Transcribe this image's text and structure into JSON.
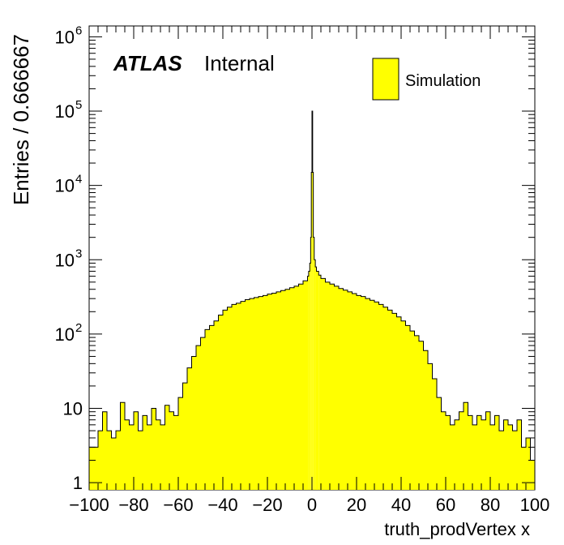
{
  "chart_data": {
    "type": "histogram",
    "xlabel": "truth_prodVertex x",
    "ylabel": "Entries / 0.666667",
    "xlim": [
      -100,
      100
    ],
    "ylim": [
      0.8,
      1400000
    ],
    "log_y": true,
    "x_ticks": [
      "−100",
      "−80",
      "−60",
      "−40",
      "−20",
      "0",
      "20",
      "40",
      "60",
      "80",
      "100"
    ],
    "y_ticks": [
      {
        "base": "1",
        "exp": ""
      },
      {
        "base": "10",
        "exp": ""
      },
      {
        "base": "10",
        "exp": "2"
      },
      {
        "base": "10",
        "exp": "3"
      },
      {
        "base": "10",
        "exp": "4"
      },
      {
        "base": "10",
        "exp": "5"
      },
      {
        "base": "10",
        "exp": "6"
      }
    ],
    "atlas_label": "ATLAS",
    "status_label": "Internal",
    "legend": {
      "label": "Simulation",
      "color": "#ffff00"
    },
    "fill_color": "#ffff00",
    "bin_width": 0.666667,
    "bins": [
      [
        -100,
        3
      ],
      [
        -96,
        5
      ],
      [
        -94,
        9
      ],
      [
        -92,
        5
      ],
      [
        -90,
        4
      ],
      [
        -88,
        5
      ],
      [
        -86,
        12
      ],
      [
        -84,
        7
      ],
      [
        -82,
        6
      ],
      [
        -80,
        9
      ],
      [
        -78,
        5
      ],
      [
        -76,
        8
      ],
      [
        -74,
        6
      ],
      [
        -72,
        10
      ],
      [
        -70,
        7
      ],
      [
        -68,
        6
      ],
      [
        -66,
        11
      ],
      [
        -64,
        9
      ],
      [
        -62,
        8
      ],
      [
        -60,
        14
      ],
      [
        -58,
        22
      ],
      [
        -56,
        35
      ],
      [
        -54,
        50
      ],
      [
        -52,
        70
      ],
      [
        -50,
        90
      ],
      [
        -48,
        115
      ],
      [
        -46,
        130
      ],
      [
        -44,
        150
      ],
      [
        -42,
        180
      ],
      [
        -40,
        210
      ],
      [
        -38,
        230
      ],
      [
        -36,
        250
      ],
      [
        -34,
        260
      ],
      [
        -32,
        275
      ],
      [
        -30,
        290
      ],
      [
        -28,
        300
      ],
      [
        -26,
        310
      ],
      [
        -24,
        320
      ],
      [
        -22,
        330
      ],
      [
        -20,
        345
      ],
      [
        -18,
        355
      ],
      [
        -16,
        370
      ],
      [
        -14,
        385
      ],
      [
        -12,
        400
      ],
      [
        -10,
        420
      ],
      [
        -8,
        440
      ],
      [
        -6,
        470
      ],
      [
        -4,
        520
      ],
      [
        -2,
        600
      ],
      [
        -1.5,
        700
      ],
      [
        -1,
        900
      ],
      [
        -0.6,
        2000
      ],
      [
        -0.3,
        15000
      ],
      [
        0,
        100000
      ],
      [
        0.3,
        15000
      ],
      [
        0.6,
        2000
      ],
      [
        1,
        1000
      ],
      [
        1.5,
        800
      ],
      [
        2,
        700
      ],
      [
        3,
        620
      ],
      [
        4,
        560
      ],
      [
        6,
        500
      ],
      [
        8,
        470
      ],
      [
        10,
        440
      ],
      [
        12,
        410
      ],
      [
        14,
        390
      ],
      [
        16,
        370
      ],
      [
        18,
        350
      ],
      [
        20,
        330
      ],
      [
        22,
        320
      ],
      [
        24,
        300
      ],
      [
        26,
        285
      ],
      [
        28,
        270
      ],
      [
        30,
        250
      ],
      [
        32,
        230
      ],
      [
        34,
        210
      ],
      [
        36,
        190
      ],
      [
        38,
        170
      ],
      [
        40,
        150
      ],
      [
        42,
        130
      ],
      [
        44,
        110
      ],
      [
        46,
        95
      ],
      [
        48,
        80
      ],
      [
        50,
        60
      ],
      [
        52,
        40
      ],
      [
        54,
        25
      ],
      [
        56,
        14
      ],
      [
        58,
        9
      ],
      [
        60,
        8
      ],
      [
        62,
        6
      ],
      [
        64,
        7
      ],
      [
        66,
        9
      ],
      [
        68,
        12
      ],
      [
        70,
        8
      ],
      [
        72,
        6
      ],
      [
        74,
        8
      ],
      [
        76,
        7
      ],
      [
        78,
        9
      ],
      [
        80,
        6
      ],
      [
        82,
        8
      ],
      [
        84,
        5
      ],
      [
        86,
        7
      ],
      [
        88,
        6
      ],
      [
        90,
        5
      ],
      [
        92,
        7
      ],
      [
        94,
        3
      ],
      [
        96,
        4
      ],
      [
        98,
        2
      ]
    ]
  }
}
